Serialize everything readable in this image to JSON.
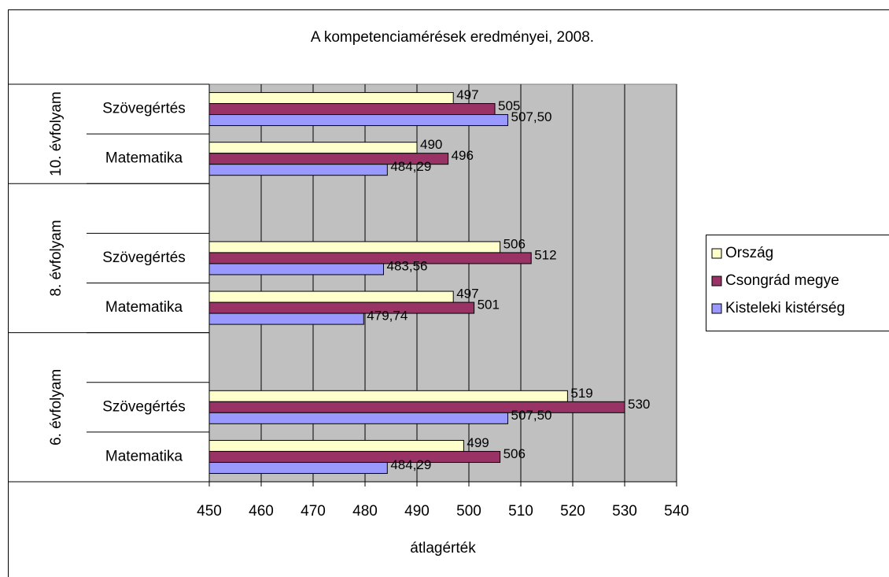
{
  "chart_data": {
    "type": "bar",
    "orientation": "horizontal",
    "title": "A kompetenciamérések eredményei, 2008.",
    "x_label": "átlagérték",
    "categories": [
      "Szövegértés",
      "Matematika",
      null,
      "Szövegértés",
      "Matematika",
      null,
      "Szövegértés",
      "Matematika"
    ],
    "groups": [
      {
        "name": "10. évfolyam",
        "span": 2
      },
      {
        "name": "8. évfolyam",
        "span": 3
      },
      {
        "name": "6. évfolyam",
        "span": 3
      }
    ],
    "series": [
      {
        "name": "Ország",
        "color": "#ffffcc",
        "values": [
          497,
          490,
          null,
          506,
          497,
          null,
          519,
          499
        ]
      },
      {
        "name": "Csongrád megye",
        "color": "#993366",
        "values": [
          505,
          496,
          null,
          512,
          501,
          null,
          530,
          506
        ]
      },
      {
        "name": "Kisteleki kistérség",
        "color": "#9999ff",
        "values": [
          507.5,
          484.29,
          null,
          483.56,
          479.74,
          null,
          507.5,
          484.29
        ],
        "value_labels": [
          "507,50",
          "484,29",
          null,
          "483,56",
          "479,74",
          null,
          "507,50",
          "484,29"
        ]
      }
    ],
    "xlim": [
      450,
      540
    ],
    "xticks": [
      450,
      460,
      470,
      480,
      490,
      500,
      510,
      520,
      530,
      540
    ],
    "grid": true,
    "legend": "right",
    "plot_background": "#c0c0c0"
  }
}
